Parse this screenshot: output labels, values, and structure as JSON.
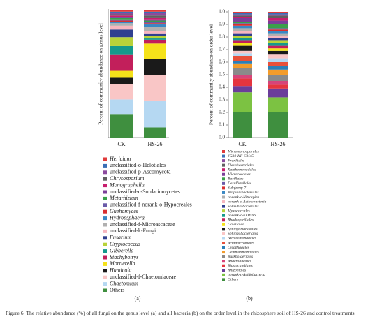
{
  "chart_data": [
    {
      "type": "stacked-bar",
      "panel_label": "(a)",
      "ylabel": "Percent of community abundance on genus level",
      "categories": [
        "CK",
        "HS-26"
      ],
      "ylim": [
        0,
        1
      ],
      "series": [
        {
          "name": "Hericium",
          "color": "#e03a3a",
          "values": [
            0.01,
            0.01
          ]
        },
        {
          "name": "unclassified-o-Helotiales",
          "color": "#3a6fb5",
          "values": [
            0.01,
            0.01
          ]
        },
        {
          "name": "unclassified-p-Ascomycota",
          "color": "#8c4a9e",
          "values": [
            0.01,
            0.02
          ]
        },
        {
          "name": "Chrysosporium",
          "color": "#606060",
          "values": [
            0.01,
            0.02
          ]
        },
        {
          "name": "Monographella",
          "color": "#c81e6e",
          "values": [
            0.01,
            0.01
          ]
        },
        {
          "name": "unclassified-c-Sordariomycetes",
          "color": "#7b3f99",
          "values": [
            0.01,
            0.01
          ]
        },
        {
          "name": "Metarhizium",
          "color": "#3aa04a",
          "values": [
            0.01,
            0.01
          ]
        },
        {
          "name": "unclassified-f-norank-o-Hypocreales",
          "color": "#6a5aa8",
          "values": [
            0.01,
            0.01
          ]
        },
        {
          "name": "Guehomyces",
          "color": "#d82f2f",
          "values": [
            0.01,
            0.01
          ]
        },
        {
          "name": "Hydropsphaera",
          "color": "#3a88c4",
          "values": [
            0.01,
            0.02
          ]
        },
        {
          "name": "unclassified-f-Microascaceae",
          "color": "#b0b0b0",
          "values": [
            0.02,
            0.03
          ]
        },
        {
          "name": "unclassified-k-Fungi",
          "color": "#f6b6bf",
          "values": [
            0.03,
            0.02
          ]
        },
        {
          "name": "Fusarium",
          "color": "#2f3f8f",
          "values": [
            0.06,
            0.02
          ]
        },
        {
          "name": "Cryptococcus",
          "color": "#b8d23a",
          "values": [
            0.07,
            0.02
          ]
        },
        {
          "name": "Gibberella",
          "color": "#14998c",
          "values": [
            0.07,
            0.01
          ]
        },
        {
          "name": "Stachybotrys",
          "color": "#c21f5b",
          "values": [
            0.12,
            0.03
          ]
        },
        {
          "name": "Mortierella",
          "color": "#f5e21a",
          "values": [
            0.06,
            0.12
          ]
        },
        {
          "name": "Humicola",
          "color": "#1a1a1a",
          "values": [
            0.05,
            0.13
          ]
        },
        {
          "name": "unclassified-f-Chaetomiaceae",
          "color": "#f9c6c6",
          "values": [
            0.12,
            0.2
          ]
        },
        {
          "name": "Chaetomium",
          "color": "#b5d8f2",
          "values": [
            0.12,
            0.21
          ]
        },
        {
          "name": "Others",
          "color": "#3f8f3f",
          "values": [
            0.18,
            0.08
          ]
        }
      ]
    },
    {
      "type": "stacked-bar",
      "panel_label": "(b)",
      "ylabel": "Percent of community abundance on order level",
      "categories": [
        "CK",
        "HS-26"
      ],
      "ylim": [
        0,
        1
      ],
      "yticks": [
        {
          "value": 0,
          "label": "0.0"
        },
        0.1,
        0.2,
        0.3,
        0.4,
        0.5,
        0.6,
        0.7,
        0.8,
        0.9,
        {
          "value": 1,
          "label": "1.0"
        }
      ],
      "series": [
        {
          "name": "Micromonosporales",
          "color": "#e03a3a",
          "values": [
            0.01,
            0.01
          ]
        },
        {
          "name": "JG30-KF-CM45",
          "color": "#3a6fb5",
          "values": [
            0.01,
            0.01
          ]
        },
        {
          "name": "Frankiales",
          "color": "#8c4a9e",
          "values": [
            0.01,
            0.01
          ]
        },
        {
          "name": "Flavobacteriales",
          "color": "#606060",
          "values": [
            0.01,
            0.02
          ]
        },
        {
          "name": "Xanthomonadales",
          "color": "#c81e6e",
          "values": [
            0.01,
            0.02
          ]
        },
        {
          "name": "Micrococcales",
          "color": "#7b3f99",
          "values": [
            0.03,
            0.03
          ]
        },
        {
          "name": "Bacillales",
          "color": "#3aa04a",
          "values": [
            0.01,
            0.03
          ]
        },
        {
          "name": "Desulfurellales",
          "color": "#6a5aa8",
          "values": [
            0.01,
            0.01
          ]
        },
        {
          "name": "Subgroup-7",
          "color": "#d82f2f",
          "values": [
            0.01,
            0.01
          ]
        },
        {
          "name": "Propionibacteriales",
          "color": "#3a88c4",
          "values": [
            0.02,
            0.02
          ]
        },
        {
          "name": "norank-c-Nitrospira",
          "color": "#b0b0b0",
          "values": [
            0.02,
            0.02
          ]
        },
        {
          "name": "norank-c-Actinobacteria",
          "color": "#f6b6bf",
          "values": [
            0.02,
            0.02
          ]
        },
        {
          "name": "Solirubrobacterales",
          "color": "#2f3f8f",
          "values": [
            0.02,
            0.02
          ]
        },
        {
          "name": "Myxococcales",
          "color": "#b8d23a",
          "values": [
            0.02,
            0.02
          ]
        },
        {
          "name": "norank-c-KD4-96",
          "color": "#14998c",
          "values": [
            0.02,
            0.02
          ]
        },
        {
          "name": "Rhodospirillales",
          "color": "#c21f5b",
          "values": [
            0.02,
            0.02
          ]
        },
        {
          "name": "Gaiellales",
          "color": "#f5e21a",
          "values": [
            0.02,
            0.02
          ]
        },
        {
          "name": "Sphingomonadales",
          "color": "#1a1a1a",
          "values": [
            0.04,
            0.03
          ]
        },
        {
          "name": "Sphingobacteriales",
          "color": "#f9c6c6",
          "values": [
            0.02,
            0.03
          ]
        },
        {
          "name": "Nitrosomonadales",
          "color": "#b5d8f2",
          "values": [
            0.02,
            0.03
          ]
        },
        {
          "name": "Acidimicrobiales",
          "color": "#e8503a",
          "values": [
            0.04,
            0.03
          ]
        },
        {
          "name": "Cytophagales",
          "color": "#2c7fb8",
          "values": [
            0.02,
            0.03
          ]
        },
        {
          "name": "Gemmatimonadales",
          "color": "#f39c2b",
          "values": [
            0.04,
            0.04
          ]
        },
        {
          "name": "Burkholderiales",
          "color": "#8a8a8a",
          "values": [
            0.05,
            0.05
          ]
        },
        {
          "name": "Anaerolineales",
          "color": "#d6447a",
          "values": [
            0.03,
            0.03
          ]
        },
        {
          "name": "Blastocatellales",
          "color": "#e5353f",
          "values": [
            0.06,
            0.03
          ]
        },
        {
          "name": "Rhizobiales",
          "color": "#6b3d9a",
          "values": [
            0.05,
            0.07
          ]
        },
        {
          "name": "norank-c-Acidobacteria",
          "color": "#7cc242",
          "values": [
            0.16,
            0.12
          ]
        },
        {
          "name": "Others",
          "color": "#3f8f3f",
          "values": [
            0.2,
            0.2
          ]
        }
      ]
    }
  ],
  "caption": "Figure 6: The relative abundance (%) of all fungi on the genus level (a) and all bacteria (b) on the order level in the rhizosphere soil of HS-26 and control treatments."
}
